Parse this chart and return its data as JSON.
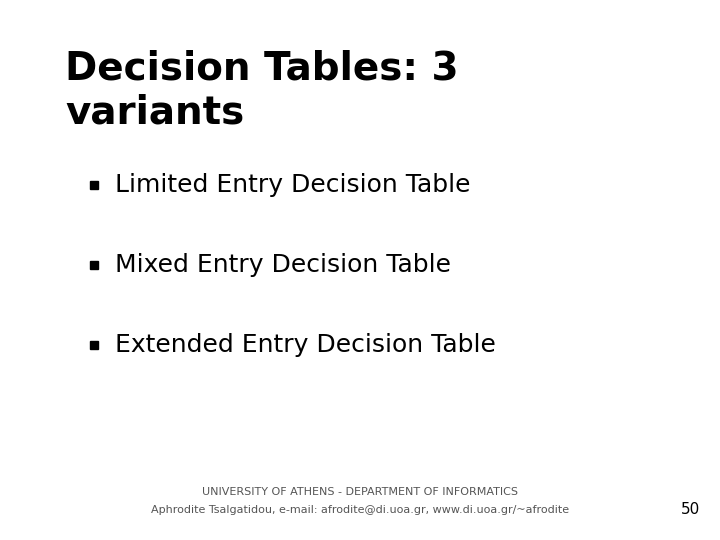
{
  "title_line1": "Decision Tables: 3",
  "title_line2": "variants",
  "bullet_items": [
    "Limited Entry Decision Table",
    "Mixed Entry Decision Table",
    "Extended Entry Decision Table"
  ],
  "footer_line1": "UNIVERSITY OF ATHENS - DEPARTMENT OF INFORMATICS",
  "footer_line2": "Aphrodite Tsalgatidou, e-mail: afrodite@di.uoa.gr, www.di.uoa.gr/~afrodite",
  "page_number": "50",
  "bg_color": "#ffffff",
  "title_color": "#000000",
  "bullet_color": "#000000",
  "bullet_marker_color": "#000000",
  "footer_color": "#555555",
  "page_num_color": "#000000",
  "title_fontsize": 28,
  "bullet_fontsize": 18,
  "footer_fontsize": 8,
  "page_num_fontsize": 11
}
